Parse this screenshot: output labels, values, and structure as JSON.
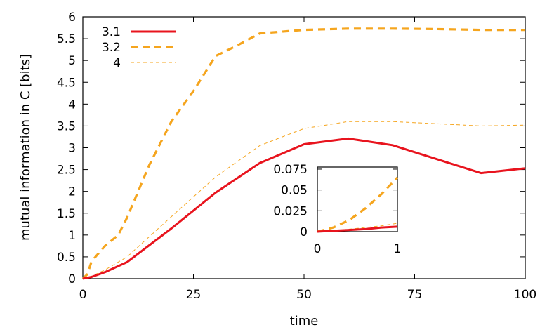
{
  "chart_data": {
    "type": "line",
    "title": "",
    "xlabel": "time",
    "ylabel": "mutual information in C [bits]",
    "xlim": [
      0,
      100
    ],
    "ylim": [
      0,
      6
    ],
    "xticks": [
      "0",
      "25",
      "50",
      "75",
      "100"
    ],
    "yticks": [
      "0",
      "0.5",
      "1",
      "1.5",
      "2",
      "2.5",
      "3",
      "3.5",
      "4",
      "4.5",
      "5",
      "5.5",
      "6"
    ],
    "legend_position": "top-left",
    "colors": {
      "red": "#e8141e",
      "orange": "#f5a51e"
    },
    "series": [
      {
        "name": "3.1",
        "style": "solid-thick",
        "x": [
          0,
          2,
          5,
          10,
          20,
          30,
          40,
          50,
          60,
          70,
          80,
          90,
          100
        ],
        "y": [
          0,
          0.04,
          0.15,
          0.38,
          1.15,
          1.97,
          2.65,
          3.08,
          3.21,
          3.06,
          2.74,
          2.42,
          2.53
        ]
      },
      {
        "name": "3.2",
        "style": "dashed-thick",
        "x": [
          0,
          1,
          2,
          5,
          8,
          10,
          15,
          20,
          25,
          30,
          35,
          40,
          50,
          60,
          70,
          80,
          90,
          100
        ],
        "y": [
          0,
          0.1,
          0.4,
          0.75,
          1.0,
          1.4,
          2.6,
          3.6,
          4.3,
          5.1,
          5.35,
          5.62,
          5.7,
          5.73,
          5.73,
          5.72,
          5.7,
          5.7
        ]
      },
      {
        "name": "4",
        "style": "dashed-thin",
        "x": [
          0,
          2,
          5,
          10,
          20,
          30,
          40,
          50,
          60,
          70,
          80,
          90,
          100
        ],
        "y": [
          0,
          0.06,
          0.2,
          0.5,
          1.42,
          2.33,
          3.05,
          3.44,
          3.6,
          3.6,
          3.55,
          3.5,
          3.52
        ]
      }
    ],
    "inset": {
      "xlim": [
        0,
        1
      ],
      "ylim": [
        0,
        0.0775
      ],
      "xticks": [
        "0",
        "1"
      ],
      "yticks": [
        "0",
        "0.025",
        "0.05",
        "0.075"
      ],
      "series": [
        {
          "name": "3.1",
          "x": [
            0,
            0.2,
            0.4,
            0.6,
            0.8,
            1.0
          ],
          "y": [
            0,
            0.001,
            0.002,
            0.003,
            0.005,
            0.006
          ]
        },
        {
          "name": "3.2",
          "x": [
            0,
            0.2,
            0.4,
            0.6,
            0.8,
            1.0
          ],
          "y": [
            0,
            0.005,
            0.014,
            0.028,
            0.045,
            0.065
          ]
        },
        {
          "name": "4",
          "x": [
            0,
            0.2,
            0.4,
            0.6,
            0.8,
            1.0
          ],
          "y": [
            0,
            0.001,
            0.003,
            0.005,
            0.007,
            0.01
          ]
        }
      ]
    }
  }
}
